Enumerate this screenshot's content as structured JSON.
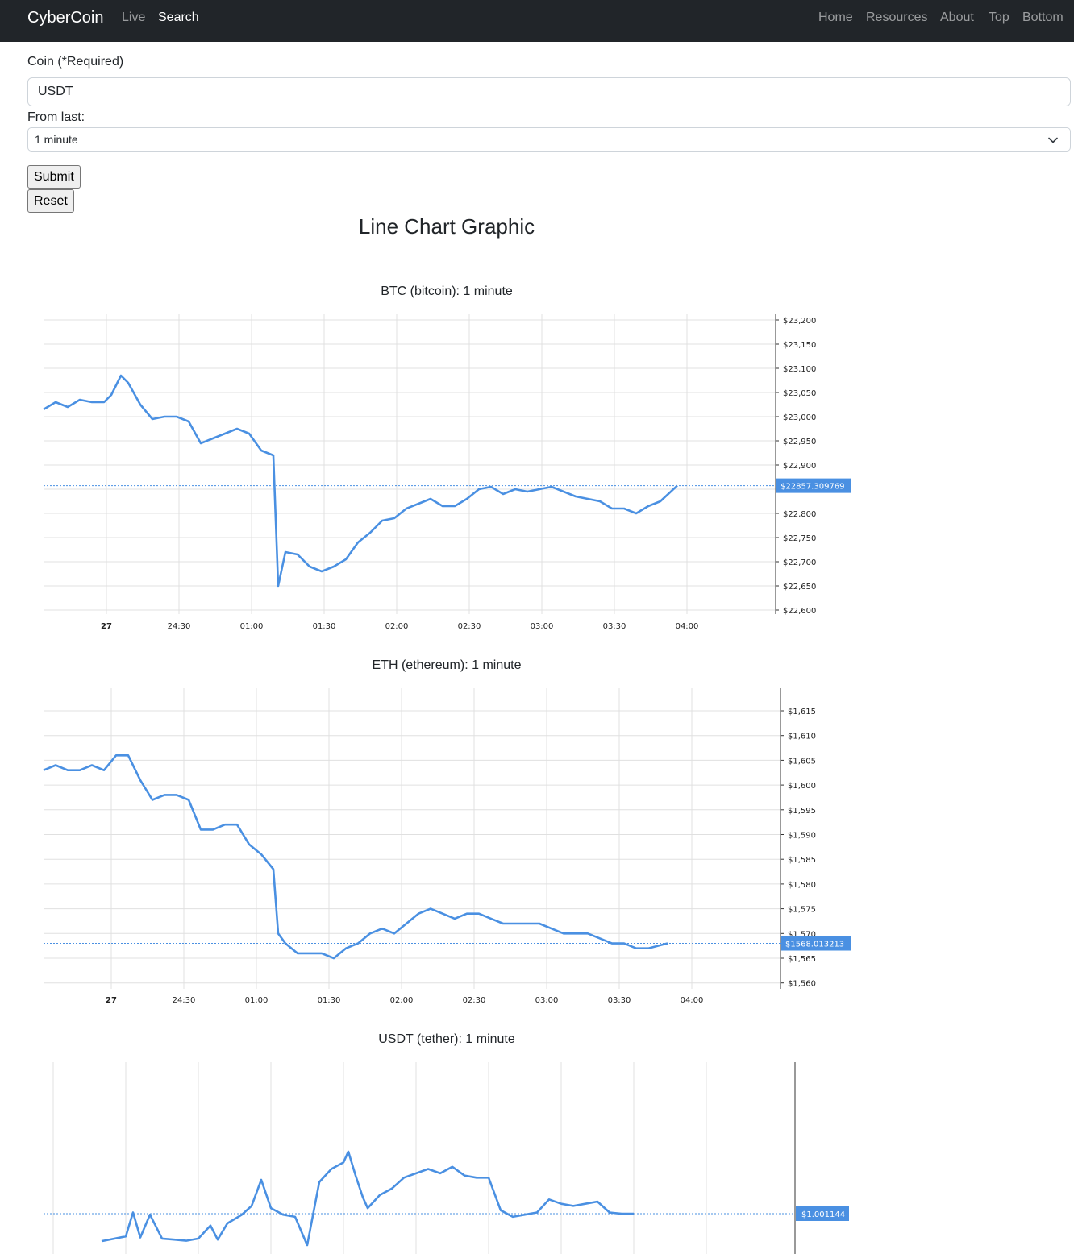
{
  "nav": {
    "brand": "CyberCoin",
    "left_links": [
      {
        "label": "Live"
      },
      {
        "label": "Search"
      }
    ],
    "right_links": [
      {
        "label": "Home"
      },
      {
        "label": "Resources"
      },
      {
        "label": "About"
      },
      {
        "label": "Top"
      },
      {
        "label": "Bottom"
      }
    ]
  },
  "form": {
    "coin_label": "Coin (*Required)",
    "coin_value": "USDT",
    "from_label": "From last:",
    "from_selected": "1 minute",
    "submit_label": "Submit",
    "reset_label": "Reset"
  },
  "page_title": "Line Chart Graphic",
  "colors": {
    "line": "#4a90e2",
    "grid": "#e0e0e0",
    "navbar": "#212529"
  },
  "chart_data": [
    {
      "type": "line",
      "title": "BTC (bitcoin): 1 minute",
      "x_ticks": [
        "27",
        "24:30",
        "01:00",
        "01:30",
        "02:00",
        "02:30",
        "03:00",
        "03:30",
        "04:00"
      ],
      "y_ticks": [
        "$23,200",
        "$23,150",
        "$23,100",
        "$23,050",
        "$23,000",
        "$22,950",
        "$22,900",
        "$22,800",
        "$22,750",
        "$22,700",
        "$22,650",
        "$22,600"
      ],
      "ylim": [
        22600,
        23200
      ],
      "last_value_label": "$22857.309769",
      "last_value": 22857.31,
      "series_points": [
        [
          "00:00",
          23015
        ],
        [
          "00:05",
          23030
        ],
        [
          "00:10",
          23020
        ],
        [
          "00:15",
          23035
        ],
        [
          "00:20",
          23030
        ],
        [
          "00:25",
          23030
        ],
        [
          "00:28",
          23045
        ],
        [
          "00:32",
          23085
        ],
        [
          "00:35",
          23070
        ],
        [
          "00:40",
          23025
        ],
        [
          "00:45",
          22995
        ],
        [
          "00:50",
          23000
        ],
        [
          "00:55",
          23000
        ],
        [
          "01:00",
          22990
        ],
        [
          "01:05",
          22945
        ],
        [
          "01:10",
          22955
        ],
        [
          "01:15",
          22965
        ],
        [
          "01:20",
          22975
        ],
        [
          "01:25",
          22965
        ],
        [
          "01:30",
          22930
        ],
        [
          "01:35",
          22920
        ],
        [
          "01:37",
          22650
        ],
        [
          "01:40",
          22720
        ],
        [
          "01:45",
          22715
        ],
        [
          "01:50",
          22690
        ],
        [
          "01:55",
          22680
        ],
        [
          "02:00",
          22690
        ],
        [
          "02:05",
          22705
        ],
        [
          "02:10",
          22740
        ],
        [
          "02:15",
          22760
        ],
        [
          "02:20",
          22785
        ],
        [
          "02:25",
          22790
        ],
        [
          "02:30",
          22810
        ],
        [
          "02:35",
          22820
        ],
        [
          "02:40",
          22830
        ],
        [
          "02:45",
          22815
        ],
        [
          "02:50",
          22815
        ],
        [
          "02:55",
          22830
        ],
        [
          "03:00",
          22850
        ],
        [
          "03:05",
          22855
        ],
        [
          "03:10",
          22840
        ],
        [
          "03:15",
          22850
        ],
        [
          "03:20",
          22845
        ],
        [
          "03:25",
          22850
        ],
        [
          "03:30",
          22855
        ],
        [
          "03:35",
          22845
        ],
        [
          "03:40",
          22835
        ],
        [
          "03:45",
          22830
        ],
        [
          "03:50",
          22825
        ],
        [
          "03:55",
          22810
        ],
        [
          "04:00",
          22810
        ],
        [
          "04:05",
          22800
        ],
        [
          "04:10",
          22815
        ],
        [
          "04:15",
          22825
        ],
        [
          "04:22",
          22857.31
        ]
      ]
    },
    {
      "type": "line",
      "title": "ETH (ethereum): 1 minute",
      "x_ticks": [
        "27",
        "24:30",
        "01:00",
        "01:30",
        "02:00",
        "02:30",
        "03:00",
        "03:30",
        "04:00"
      ],
      "y_ticks": [
        "$1,615",
        "$1,610",
        "$1,605",
        "$1,600",
        "$1,595",
        "$1,590",
        "$1,585",
        "$1,580",
        "$1,575",
        "$1,570",
        "$1,565",
        "$1,560"
      ],
      "ylim": [
        1560,
        1619
      ],
      "last_value_label": "$1568.013213",
      "last_value": 1568.01,
      "series_points": [
        [
          "00:00",
          1603
        ],
        [
          "00:05",
          1604
        ],
        [
          "00:10",
          1603
        ],
        [
          "00:15",
          1603
        ],
        [
          "00:20",
          1604
        ],
        [
          "00:25",
          1603
        ],
        [
          "00:30",
          1606
        ],
        [
          "00:35",
          1606
        ],
        [
          "00:40",
          1601
        ],
        [
          "00:45",
          1597
        ],
        [
          "00:50",
          1598
        ],
        [
          "00:55",
          1598
        ],
        [
          "01:00",
          1597
        ],
        [
          "01:05",
          1591
        ],
        [
          "01:10",
          1591
        ],
        [
          "01:15",
          1592
        ],
        [
          "01:20",
          1592
        ],
        [
          "01:25",
          1588
        ],
        [
          "01:30",
          1586
        ],
        [
          "01:35",
          1583
        ],
        [
          "01:37",
          1570
        ],
        [
          "01:40",
          1568
        ],
        [
          "01:45",
          1566
        ],
        [
          "01:50",
          1566
        ],
        [
          "01:55",
          1566
        ],
        [
          "02:00",
          1565
        ],
        [
          "02:05",
          1567
        ],
        [
          "02:10",
          1568
        ],
        [
          "02:15",
          1570
        ],
        [
          "02:20",
          1571
        ],
        [
          "02:25",
          1570
        ],
        [
          "02:30",
          1572
        ],
        [
          "02:35",
          1574
        ],
        [
          "02:40",
          1575
        ],
        [
          "02:45",
          1574
        ],
        [
          "02:50",
          1573
        ],
        [
          "02:55",
          1574
        ],
        [
          "03:00",
          1574
        ],
        [
          "03:05",
          1573
        ],
        [
          "03:10",
          1572
        ],
        [
          "03:15",
          1572
        ],
        [
          "03:20",
          1572
        ],
        [
          "03:25",
          1572
        ],
        [
          "03:30",
          1571
        ],
        [
          "03:35",
          1570
        ],
        [
          "03:40",
          1570
        ],
        [
          "03:45",
          1570
        ],
        [
          "03:50",
          1569
        ],
        [
          "03:55",
          1568
        ],
        [
          "04:00",
          1568
        ],
        [
          "04:05",
          1567
        ],
        [
          "04:10",
          1567
        ],
        [
          "04:18",
          1568.01
        ]
      ]
    },
    {
      "type": "line",
      "title": "USDT (tether): 1 minute",
      "last_value_label": "$1.001144",
      "last_value": 1.001144,
      "series_points": [
        [
          "00:20",
          0.99988
        ],
        [
          "00:30",
          1.0001
        ],
        [
          "00:33",
          1.0012
        ],
        [
          "00:36",
          1.00005
        ],
        [
          "00:40",
          1.0011
        ],
        [
          "00:45",
          1.0
        ],
        [
          "00:50",
          0.99995
        ],
        [
          "00:55",
          0.9999
        ],
        [
          "01:00",
          1.0
        ],
        [
          "01:05",
          1.0006
        ],
        [
          "01:08",
          0.99995
        ],
        [
          "01:12",
          1.0007
        ],
        [
          "01:18",
          1.0011
        ],
        [
          "01:22",
          1.0015
        ],
        [
          "01:26",
          1.0027
        ],
        [
          "01:30",
          1.0014
        ],
        [
          "01:35",
          1.0011
        ],
        [
          "01:40",
          1.001
        ],
        [
          "01:45",
          0.9997
        ],
        [
          "01:50",
          1.0026
        ],
        [
          "01:55",
          1.0032
        ],
        [
          "02:00",
          1.0035
        ],
        [
          "02:02",
          1.004
        ],
        [
          "02:05",
          1.0029
        ],
        [
          "02:08",
          1.0019
        ],
        [
          "02:10",
          1.0014
        ],
        [
          "02:15",
          1.002
        ],
        [
          "02:20",
          1.0023
        ],
        [
          "02:25",
          1.0028
        ],
        [
          "02:30",
          1.003
        ],
        [
          "02:35",
          1.0032
        ],
        [
          "02:40",
          1.003
        ],
        [
          "02:45",
          1.0033
        ],
        [
          "02:50",
          1.0029
        ],
        [
          "02:55",
          1.0028
        ],
        [
          "03:00",
          1.0028
        ],
        [
          "03:05",
          1.0013
        ],
        [
          "03:10",
          1.001
        ],
        [
          "03:15",
          1.0011
        ],
        [
          "03:20",
          1.0012
        ],
        [
          "03:25",
          1.0018
        ],
        [
          "03:30",
          1.0016
        ],
        [
          "03:35",
          1.0015
        ],
        [
          "03:40",
          1.0016
        ],
        [
          "03:45",
          1.0017
        ],
        [
          "03:50",
          1.0012
        ],
        [
          "03:55",
          1.00114
        ],
        [
          "04:00",
          1.00114
        ]
      ]
    }
  ]
}
